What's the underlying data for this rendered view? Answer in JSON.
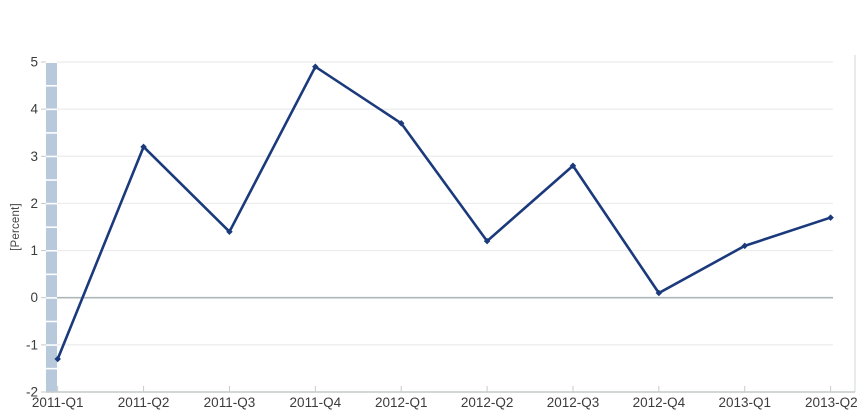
{
  "chart": {
    "ylabel": "[Percent]"
  },
  "chart_data": {
    "type": "line",
    "title": "",
    "xlabel": "",
    "ylabel": "[Percent]",
    "categories": [
      "2011-Q1",
      "2011-Q2",
      "2011-Q3",
      "2011-Q4",
      "2012-Q1",
      "2012-Q2",
      "2012-Q3",
      "2012-Q4",
      "2013-Q1",
      "2013-Q2"
    ],
    "values": [
      -1.3,
      3.2,
      1.4,
      4.9,
      3.7,
      1.2,
      2.8,
      0.1,
      1.1,
      1.7
    ],
    "ylim": [
      -2,
      5
    ],
    "ytick_interval": 1,
    "yticks": [
      5,
      4,
      3,
      2,
      1,
      0,
      -1,
      -2
    ],
    "grid": true,
    "legend": false,
    "colors": {
      "line": "#1b3a7c",
      "grid": "#ececec",
      "zero_line": "#aeb7b7",
      "axis_line": "#c3c9c9",
      "tick": "#c9c9c9",
      "axis_band": "#b8c9dc",
      "right_border": "#d9dee1",
      "text": "#3c3c3c"
    }
  }
}
